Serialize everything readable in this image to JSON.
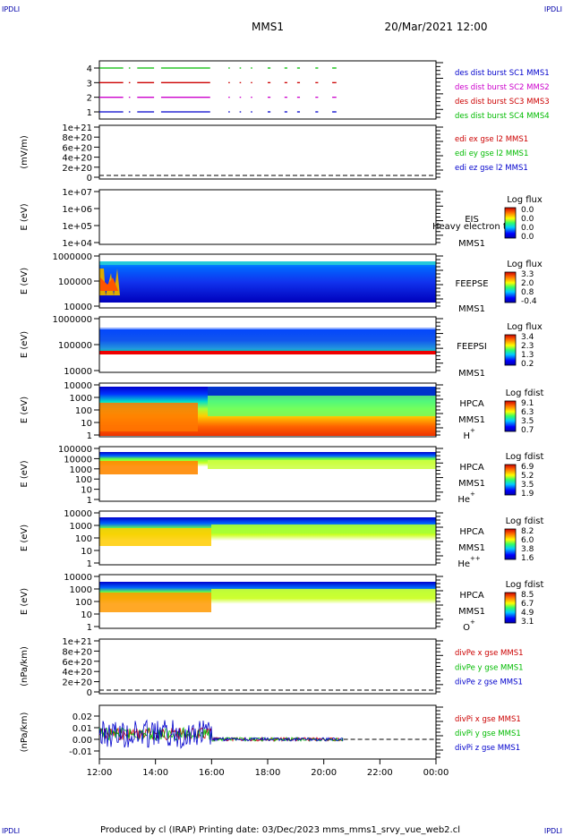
{
  "corner_labels": {
    "tl": "IPDLI",
    "tr": "IPDLI",
    "bl": "IPDLI",
    "br": "IPDLI"
  },
  "header": {
    "mission": "MMS1",
    "datetime": "20/Mar/2021 12:00"
  },
  "footer": {
    "text": "Produced by cl (IRAP)    Printing date: 03/Dec/2023    mms_mms1_srvy_vue_web2.cl"
  },
  "colors": {
    "red": "#cc0000",
    "green": "#00bb00",
    "blue": "#0000cc",
    "magenta": "#cc00cc",
    "dashed": "#000000"
  },
  "chart_data": [
    {
      "type": "line",
      "panel": "burst",
      "x_ticks": [
        "12:00",
        "14:00",
        "16:00",
        "18:00",
        "20:00",
        "22:00",
        "00:00"
      ],
      "yticks": [
        "1",
        "2",
        "3",
        "4"
      ],
      "ylim": [
        0.5,
        4.5
      ],
      "legend": [
        {
          "text": "des dist burst SC1 MMS1",
          "color": "#0000cc"
        },
        {
          "text": "des dist burst SC2 MMS2",
          "color": "#cc00cc"
        },
        {
          "text": "des dist burst SC3 MMS3",
          "color": "#cc0000"
        },
        {
          "text": "des dist burst SC4 MMS4",
          "color": "#00bb00"
        }
      ],
      "segments": [
        [
          12.0,
          12.85
        ],
        [
          13.05,
          13.1
        ],
        [
          13.35,
          13.95
        ],
        [
          14.2,
          15.95
        ],
        [
          16.6,
          16.65
        ],
        [
          17.0,
          17.05
        ],
        [
          17.4,
          17.45
        ],
        [
          18.0,
          18.1
        ],
        [
          18.6,
          18.7
        ],
        [
          19.05,
          19.15
        ],
        [
          19.7,
          19.8
        ],
        [
          20.3,
          20.45
        ]
      ]
    },
    {
      "type": "line",
      "panel": "edi",
      "ylabel": "(mV/m)",
      "yticks": [
        "1e+21",
        "8e+20",
        "6e+20",
        "4e+20",
        "2e+20",
        "0"
      ],
      "legend": [
        {
          "text": "edi ex gse l2 MMS1",
          "color": "#cc0000"
        },
        {
          "text": "edi ey gse l2 MMS1",
          "color": "#00bb00"
        },
        {
          "text": "edi ez gse l2 MMS1",
          "color": "#0000cc"
        }
      ]
    },
    {
      "type": "heatmap",
      "panel": "eis",
      "ylabel": "E (eV)",
      "yticks": [
        "1e+07",
        "1e+06",
        "1e+05",
        "1e+04"
      ],
      "labels": [
        "EIS",
        "MMS1"
      ],
      "overlay": "Heavy electron to",
      "cbar_title": "Log flux",
      "cbar_ticks": [
        "0.0",
        "0.0",
        "0.0",
        "0.0"
      ]
    },
    {
      "type": "heatmap",
      "panel": "feepse",
      "ylabel": "E (eV)",
      "yticks": [
        "1000000",
        "100000",
        "10000"
      ],
      "labels": [
        "FEEPSE",
        "MMS1"
      ],
      "cbar_title": "Log flux",
      "cbar_ticks": [
        "3.3",
        "2.0",
        "0.8",
        "-0.4"
      ]
    },
    {
      "type": "heatmap",
      "panel": "feepsi",
      "ylabel": "E (eV)",
      "yticks": [
        "1000000",
        "100000",
        "10000"
      ],
      "labels": [
        "FEEPSI",
        "MMS1"
      ],
      "cbar_title": "Log flux",
      "cbar_ticks": [
        "3.4",
        "2.3",
        "1.3",
        "0.2"
      ]
    },
    {
      "type": "heatmap",
      "panel": "hpca_h",
      "ylabel": "E (eV)",
      "yticks": [
        "10000",
        "1000",
        "100",
        "10",
        "1"
      ],
      "labels": [
        "HPCA",
        "MMS1"
      ],
      "species": "H",
      "species_sup": "+",
      "cbar_title": "Log fdist",
      "cbar_ticks": [
        "9.1",
        "6.3",
        "3.5",
        "0.7"
      ]
    },
    {
      "type": "heatmap",
      "panel": "hpca_he",
      "ylabel": "E (eV)",
      "yticks": [
        "100000",
        "10000",
        "1000",
        "100",
        "10",
        "1"
      ],
      "labels": [
        "HPCA",
        "MMS1"
      ],
      "species": "He",
      "species_sup": "+",
      "cbar_title": "Log fdist",
      "cbar_ticks": [
        "6.9",
        "5.2",
        "3.5",
        "1.9"
      ]
    },
    {
      "type": "heatmap",
      "panel": "hpca_hepp",
      "ylabel": "E (eV)",
      "yticks": [
        "10000",
        "1000",
        "100",
        "10",
        "1"
      ],
      "labels": [
        "HPCA",
        "MMS1"
      ],
      "species": "He",
      "species_sup": "++",
      "cbar_title": "Log fdist",
      "cbar_ticks": [
        "8.2",
        "6.0",
        "3.8",
        "1.6"
      ]
    },
    {
      "type": "heatmap",
      "panel": "hpca_o",
      "ylabel": "E (eV)",
      "yticks": [
        "10000",
        "1000",
        "100",
        "10",
        "1"
      ],
      "labels": [
        "HPCA",
        "MMS1"
      ],
      "species": "O",
      "species_sup": "+",
      "cbar_title": "Log fdist",
      "cbar_ticks": [
        "8.5",
        "6.7",
        "4.9",
        "3.1"
      ]
    },
    {
      "type": "line",
      "panel": "divpe",
      "ylabel": "(nPa/km)",
      "yticks": [
        "1e+21",
        "8e+20",
        "6e+20",
        "4e+20",
        "2e+20",
        "0"
      ],
      "legend": [
        {
          "text": "divPe x gse MMS1",
          "color": "#cc0000"
        },
        {
          "text": "divPe y gse MMS1",
          "color": "#00bb00"
        },
        {
          "text": "divPe z gse MMS1",
          "color": "#0000cc"
        }
      ]
    },
    {
      "type": "line",
      "panel": "divpi",
      "ylabel": "(nPa/km)",
      "yticks": [
        "0.02",
        "0.01",
        "0.00",
        "-0.01"
      ],
      "ylim": [
        -0.015,
        0.027
      ],
      "legend": [
        {
          "text": "divPi x gse MMS1",
          "color": "#cc0000"
        },
        {
          "text": "divPi y gse MMS1",
          "color": "#00bb00"
        },
        {
          "text": "divPi z gse MMS1",
          "color": "#0000cc"
        }
      ]
    }
  ]
}
